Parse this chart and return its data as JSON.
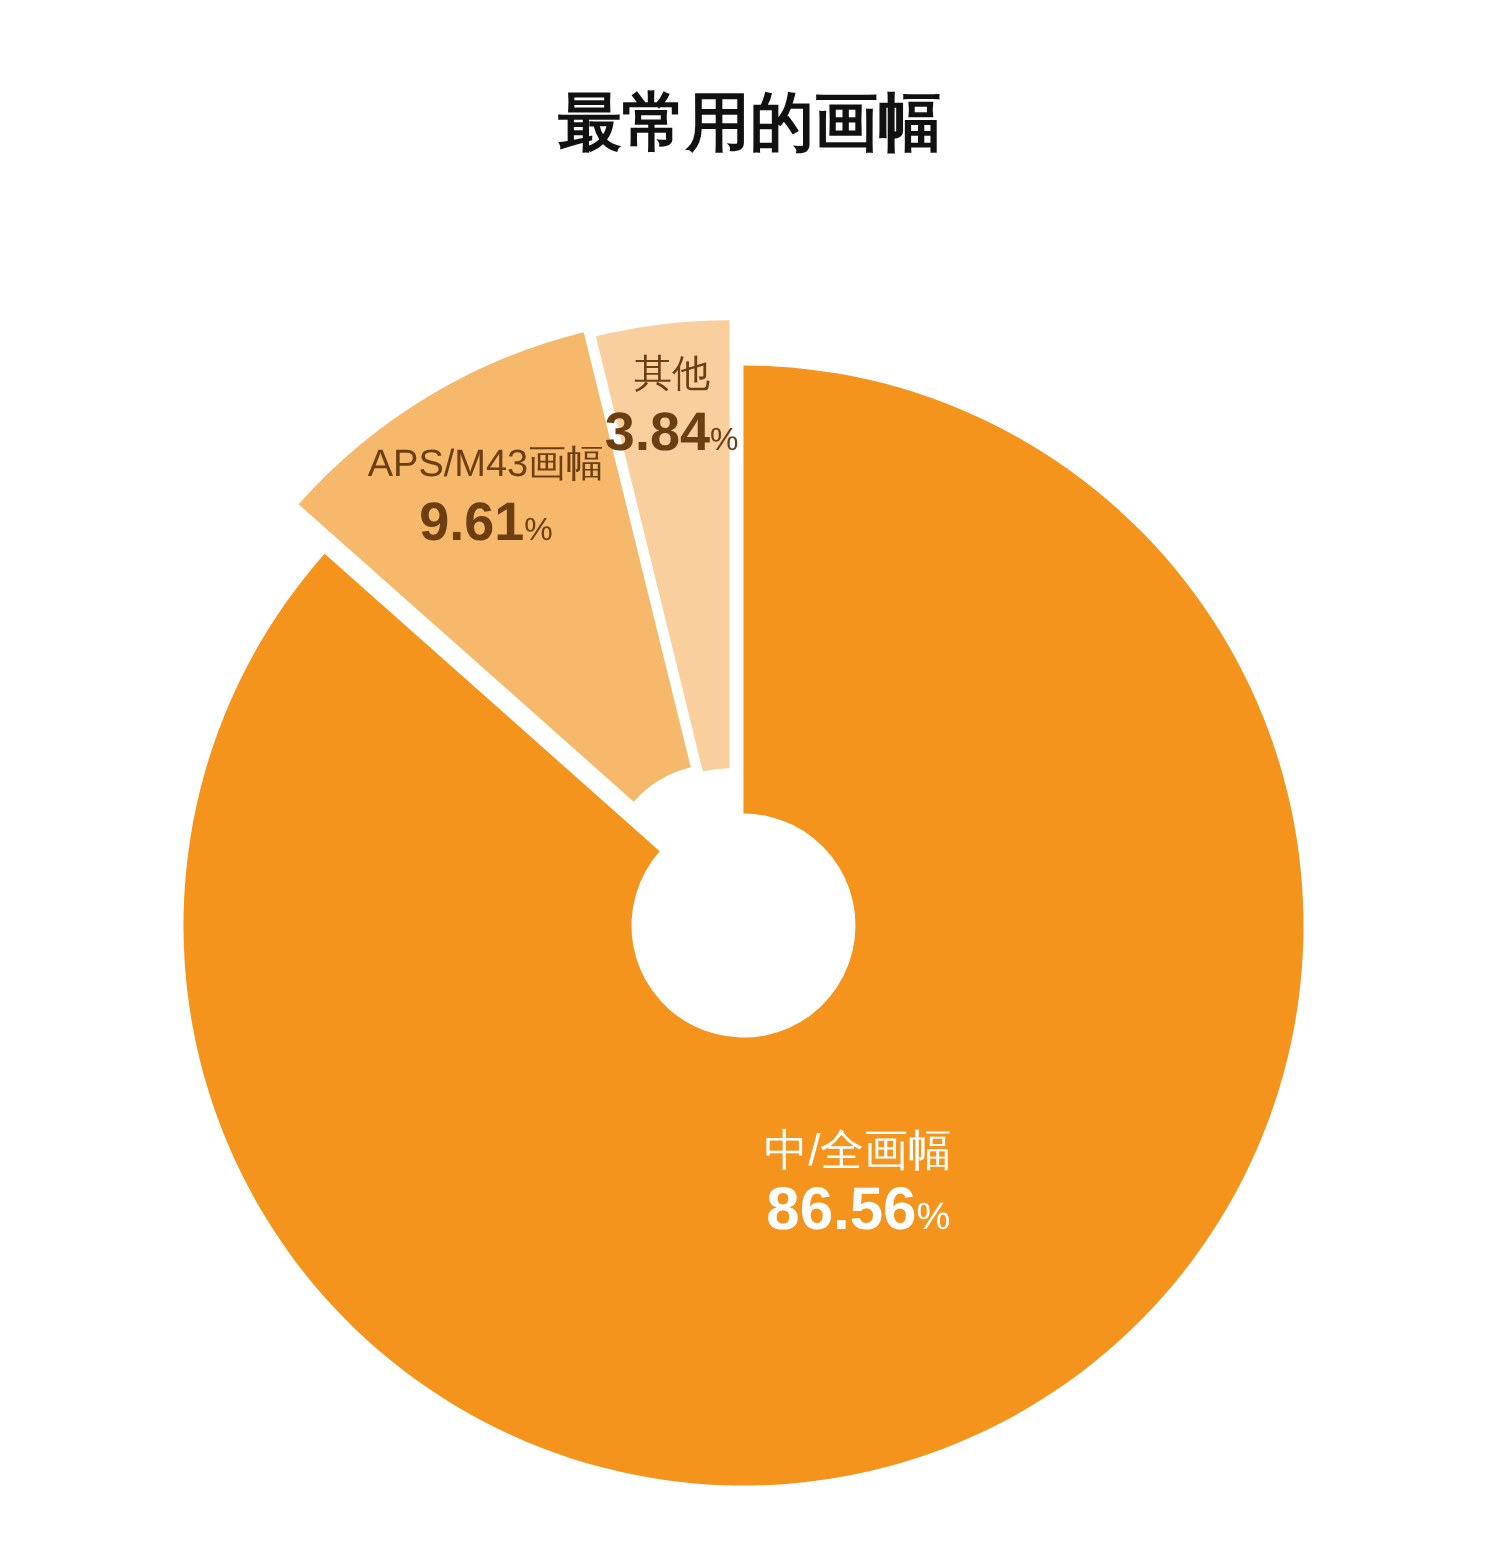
{
  "chart_data": {
    "type": "donut",
    "title": "最常用的画幅",
    "categories": [
      "中/全画幅",
      "APS/M43画幅",
      "其他"
    ],
    "values": [
      86.56,
      9.61,
      3.84
    ],
    "colors": [
      "#f5941d",
      "#f6b86a",
      "#f9cf9e"
    ],
    "value_labels": [
      "86.56%",
      "9.61%",
      "3.84%"
    ]
  }
}
